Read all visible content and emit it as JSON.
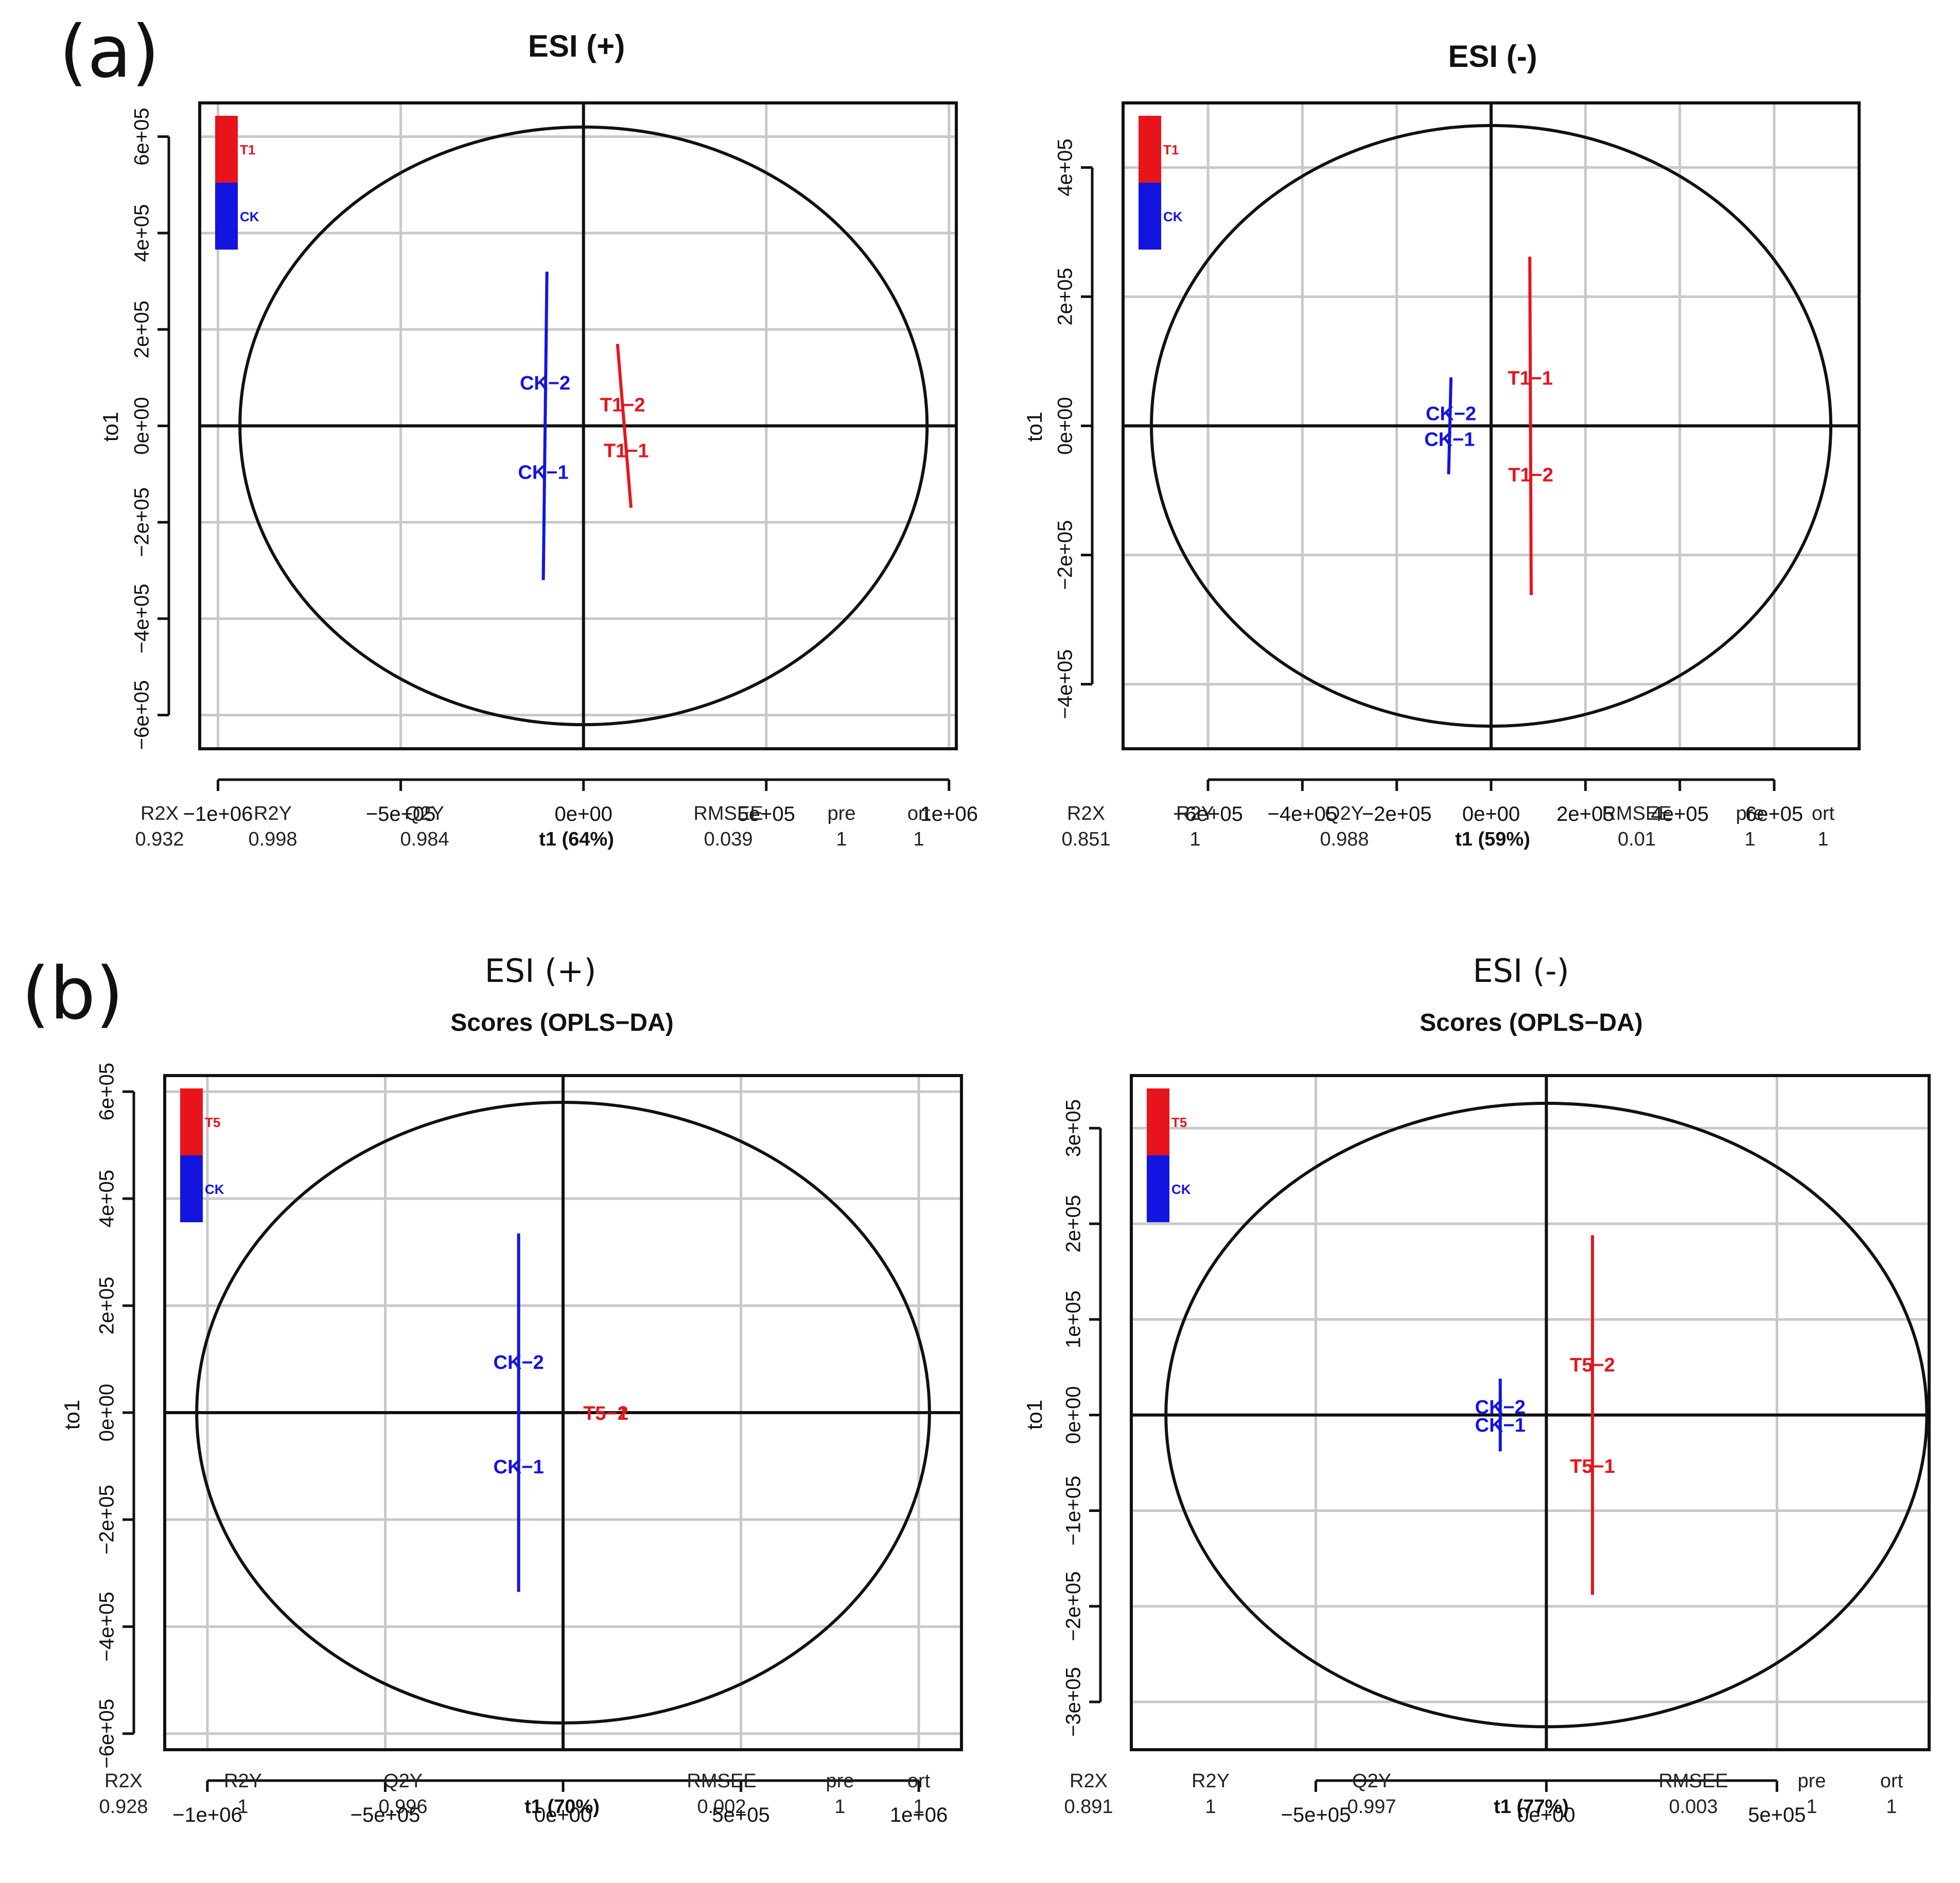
{
  "panels": [
    {
      "letter": "(a)"
    },
    {
      "letter": "(b)"
    }
  ],
  "colors": {
    "red": "#e8141c",
    "blue": "#1414e0",
    "grid": "#c8c8c8",
    "frame": "#111111"
  },
  "chart_data": [
    {
      "type": "scatter",
      "title": "ESI (+)",
      "subtitle": "",
      "xlabel": "t1 (64%)",
      "ylabel": "to1",
      "xlim": [
        -1050000,
        1020000
      ],
      "ylim": [
        -670000,
        670000
      ],
      "xticks": [
        -1000000,
        -500000,
        0,
        500000,
        1000000
      ],
      "xtick_labels": [
        "−1e+06",
        "−5e+05",
        "0e+00",
        "5e+05",
        "1e+06"
      ],
      "yticks": [
        -600000,
        -400000,
        -200000,
        0,
        200000,
        400000,
        600000
      ],
      "ytick_labels": [
        "−6e+05",
        "−4e+05",
        "−2e+05",
        "0e+00",
        "2e+05",
        "4e+05",
        "6e+05"
      ],
      "ellipse": {
        "rx": 940000,
        "ry": 620000
      },
      "legend": [
        {
          "name": "T1",
          "color": "red"
        },
        {
          "name": "CK",
          "color": "blue"
        }
      ],
      "groups": [
        {
          "color": "blue",
          "line": [
            [
              -100000,
              320000
            ],
            [
              -110000,
              -320000
            ]
          ],
          "points": [
            {
              "label": "CK−2",
              "x": -105000,
              "y": 90000
            },
            {
              "label": "CK−1",
              "x": -110000,
              "y": -95000
            }
          ]
        },
        {
          "color": "red",
          "line": [
            [
              93000,
              170000
            ],
            [
              130000,
              -170000
            ]
          ],
          "points": [
            {
              "label": "T1−2",
              "x": 107000,
              "y": 45000
            },
            {
              "label": "T1−1",
              "x": 117000,
              "y": -50000
            }
          ]
        }
      ],
      "stats": {
        "R2X": "0.932",
        "R2Y": "0.998",
        "Q2Y": "0.984",
        "RMSEE": "0.039",
        "pre": "1",
        "ort": "1"
      }
    },
    {
      "type": "scatter",
      "title": "ESI (-)",
      "subtitle": "",
      "xlabel": "t1 (59%)",
      "ylabel": "to1",
      "xlim": [
        -780000,
        780000
      ],
      "ylim": [
        -500000,
        500000
      ],
      "xticks": [
        -600000,
        -400000,
        -200000,
        0,
        200000,
        400000,
        600000
      ],
      "xtick_labels": [
        "−6e+05",
        "−4e+05",
        "−2e+05",
        "0e+00",
        "2e+05",
        "4e+05",
        "6e+05"
      ],
      "yticks": [
        -400000,
        -200000,
        0,
        200000,
        400000
      ],
      "ytick_labels": [
        "−4e+05",
        "−2e+05",
        "0e+00",
        "2e+05",
        "4e+05"
      ],
      "ellipse": {
        "rx": 720000,
        "ry": 465000
      },
      "legend": [
        {
          "name": "T1",
          "color": "red"
        },
        {
          "name": "CK",
          "color": "blue"
        }
      ],
      "groups": [
        {
          "color": "blue",
          "line": [
            [
              -85000,
              75000
            ],
            [
              -90000,
              -75000
            ]
          ],
          "points": [
            {
              "label": "CK−2",
              "x": -85000,
              "y": 20000
            },
            {
              "label": "CK−1",
              "x": -88000,
              "y": -20000
            }
          ]
        },
        {
          "color": "red",
          "line": [
            [
              82000,
              262000
            ],
            [
              85000,
              -262000
            ]
          ],
          "points": [
            {
              "label": "T1−1",
              "x": 83000,
              "y": 75000
            },
            {
              "label": "T1−2",
              "x": 84000,
              "y": -75000
            }
          ]
        }
      ],
      "stats": {
        "R2X": "0.851",
        "R2Y": "1",
        "Q2Y": "0.988",
        "RMSEE": "0.01",
        "pre": "1",
        "ort": "1"
      }
    },
    {
      "type": "scatter",
      "title": "ESI (+)",
      "subtitle": "Scores (OPLS−DA)",
      "xlabel": "t1 (70%)",
      "ylabel": "to1",
      "xlim": [
        -1120000,
        1120000
      ],
      "ylim": [
        -630000,
        630000
      ],
      "xticks": [
        -1000000,
        -500000,
        0,
        500000,
        1000000
      ],
      "xtick_labels": [
        "−1e+06",
        "−5e+05",
        "0e+00",
        "5e+05",
        "1e+06"
      ],
      "yticks": [
        -600000,
        -400000,
        -200000,
        0,
        200000,
        400000,
        600000
      ],
      "ytick_labels": [
        "−6e+05",
        "−4e+05",
        "−2e+05",
        "0e+00",
        "2e+05",
        "4e+05",
        "6e+05"
      ],
      "ellipse": {
        "rx": 1030000,
        "ry": 580000
      },
      "legend": [
        {
          "name": "T5",
          "color": "red"
        },
        {
          "name": "CK",
          "color": "blue"
        }
      ],
      "groups": [
        {
          "color": "blue",
          "line": [
            [
              -125000,
              335000
            ],
            [
              -125000,
              -335000
            ]
          ],
          "points": [
            {
              "label": "CK−2",
              "x": -125000,
              "y": 95000
            },
            {
              "label": "CK−1",
              "x": -125000,
              "y": -100000
            }
          ]
        },
        {
          "color": "red",
          "line": [
            [
              112000,
              2000
            ],
            [
              112000,
              -2000
            ]
          ],
          "points": [
            {
              "label": "T5−1",
              "x": 120000,
              "y": 0
            },
            {
              "label": "T5−2",
              "x": 120000,
              "y": 0
            }
          ]
        }
      ],
      "stats": {
        "R2X": "0.928",
        "R2Y": "1",
        "Q2Y": "0.996",
        "RMSEE": "0.002",
        "pre": "1",
        "ort": "1"
      }
    },
    {
      "type": "scatter",
      "title": "ESI (-)",
      "subtitle": "Scores (OPLS−DA)",
      "xlabel": "t1 (77%)",
      "ylabel": "to1",
      "xlim": [
        -900000,
        830000
      ],
      "ylim": [
        -350000,
        355000
      ],
      "xticks": [
        -500000,
        0,
        500000
      ],
      "xtick_labels": [
        "−5e+05",
        "0e+00",
        "5e+05"
      ],
      "yticks": [
        -300000,
        -200000,
        -100000,
        0,
        100000,
        200000,
        300000
      ],
      "ytick_labels": [
        "−3e+05",
        "−2e+05",
        "−1e+05",
        "0e+00",
        "1e+05",
        "2e+05",
        "3e+05"
      ],
      "ellipse": {
        "rx": 825000,
        "ry": 326000
      },
      "legend": [
        {
          "name": "T5",
          "color": "red"
        },
        {
          "name": "CK",
          "color": "blue"
        }
      ],
      "groups": [
        {
          "color": "blue",
          "line": [
            [
              -100000,
              38000
            ],
            [
              -100000,
              -38000
            ]
          ],
          "points": [
            {
              "label": "CK−2",
              "x": -100000,
              "y": 9000
            },
            {
              "label": "CK−1",
              "x": -100000,
              "y": -10000
            }
          ]
        },
        {
          "color": "red",
          "line": [
            [
              100000,
              188000
            ],
            [
              100000,
              -188000
            ]
          ],
          "points": [
            {
              "label": "T5−2",
              "x": 100000,
              "y": 53000
            },
            {
              "label": "T5−1",
              "x": 100000,
              "y": -53000
            }
          ]
        }
      ],
      "stats": {
        "R2X": "0.891",
        "R2Y": "1",
        "Q2Y": "0.997",
        "RMSEE": "0.003",
        "pre": "1",
        "ort": "1"
      }
    }
  ]
}
